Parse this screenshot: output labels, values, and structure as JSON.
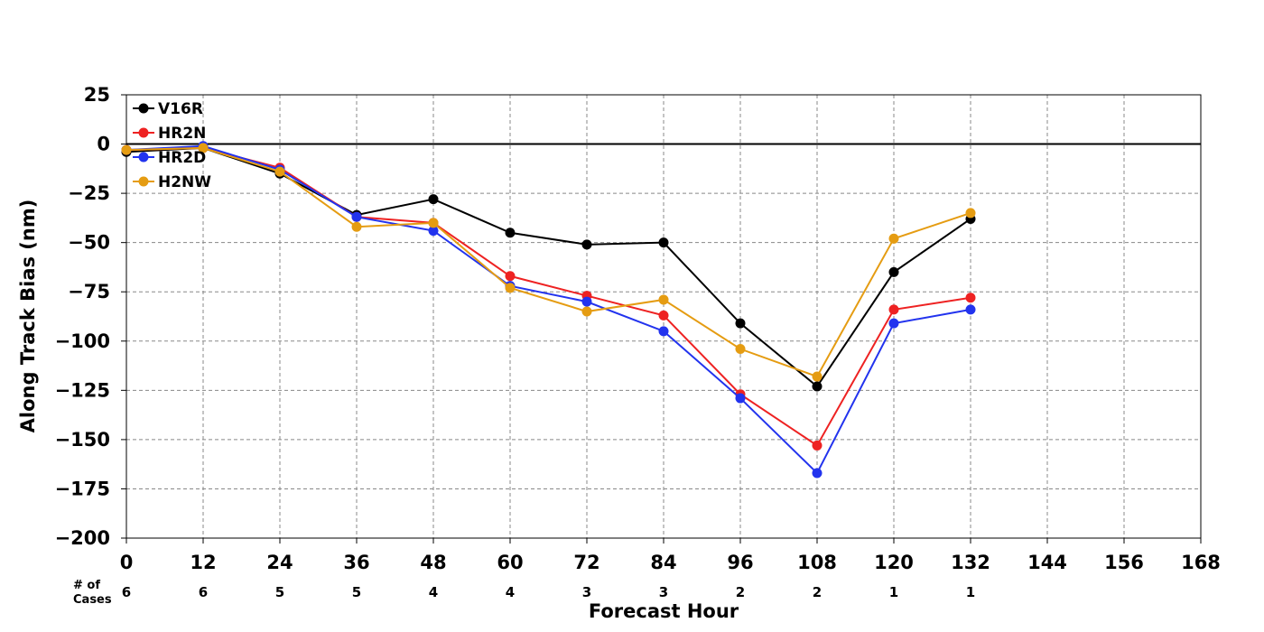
{
  "chart_data": {
    "type": "line",
    "xlabel": "Forecast Hour",
    "ylabel": "Along Track Bias (nm)",
    "xlim": [
      0,
      168
    ],
    "ylim": [
      -200,
      25
    ],
    "x_ticks": [
      "0",
      "12",
      "24",
      "36",
      "48",
      "60",
      "72",
      "84",
      "96",
      "108",
      "120",
      "132",
      "144",
      "156",
      "168"
    ],
    "y_ticks": [
      "25",
      "0",
      "−25",
      "−50",
      "−75",
      "−100",
      "−125",
      "−150",
      "−175",
      "−200"
    ],
    "grid": true,
    "reference_line": 0,
    "legend_position": "top-left",
    "x": [
      0,
      12,
      24,
      36,
      48,
      60,
      72,
      84,
      96,
      108,
      120,
      132
    ],
    "series": [
      {
        "name": "V16R",
        "color": "#000000",
        "values": [
          -4,
          -2,
          -15,
          -36,
          -28,
          -45,
          -51,
          -50,
          -91,
          -123,
          -65,
          -38
        ]
      },
      {
        "name": "HR2N",
        "color": "#ee2222",
        "values": [
          -3,
          -2,
          -12,
          -37,
          -40,
          -67,
          -77,
          -87,
          -127,
          -153,
          -84,
          -78
        ]
      },
      {
        "name": "HR2D",
        "color": "#2233ee",
        "values": [
          -3,
          -1,
          -13,
          -37,
          -44,
          -72,
          -80,
          -95,
          -129,
          -167,
          -91,
          -84
        ]
      },
      {
        "name": "H2NW",
        "color": "#e59c12",
        "values": [
          -3,
          -2,
          -14,
          -42,
          -40,
          -73,
          -85,
          -79,
          -104,
          -118,
          -48,
          -35
        ]
      }
    ],
    "cases": {
      "title_line1": "# of",
      "title_line2": "Cases",
      "values": [
        "6",
        "6",
        "5",
        "5",
        "4",
        "4",
        "3",
        "3",
        "2",
        "2",
        "1",
        "1"
      ]
    }
  }
}
